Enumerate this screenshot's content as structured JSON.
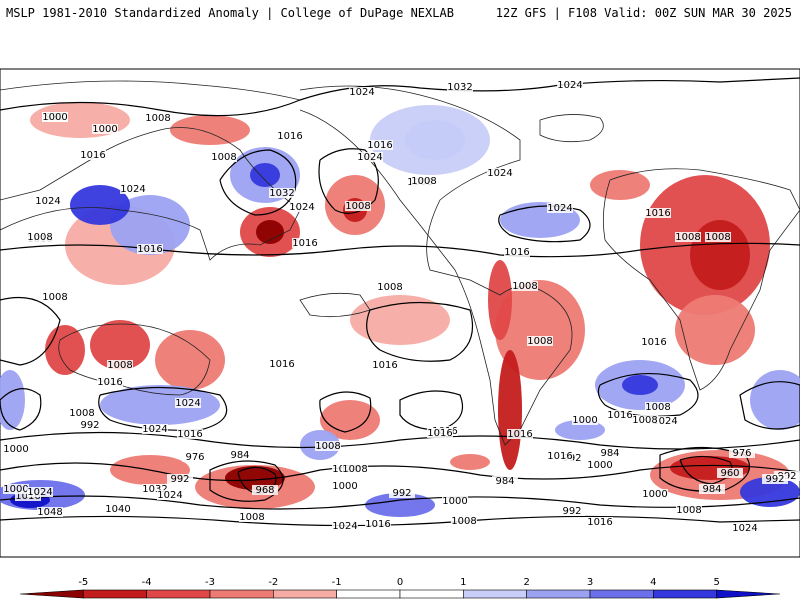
{
  "header": {
    "left": "MSLP 1981-2010 Standardized Anomaly | College of DuPage NEXLAB",
    "right": "12Z GFS | F108 Valid: 00Z SUN MAR 30 2025"
  },
  "colorbar": {
    "ticks": [
      "-5",
      "-4",
      "-3",
      "-2",
      "-1",
      "0",
      "1",
      "2",
      "3",
      "4",
      "5"
    ],
    "colors": [
      "#8b0000",
      "#c41c1c",
      "#e04848",
      "#ee7a74",
      "#f6aca4",
      "#ffffff",
      "#ffffff",
      "#c8cef8",
      "#9ca2f2",
      "#6c70ea",
      "#3538dc",
      "#1010c8"
    ]
  },
  "isobar_labels": [
    "992",
    "1000",
    "1008",
    "1016",
    "1024",
    "1032",
    "1024",
    "1024",
    "1008",
    "1016",
    "1024",
    "1032",
    "1016",
    "1024",
    "1008",
    "1008",
    "1016",
    "1024",
    "1016",
    "1008",
    "1008",
    "1016",
    "1024",
    "1024",
    "1016",
    "1016",
    "1008",
    "1008",
    "1016",
    "1008",
    "1008",
    "1008",
    "1016",
    "1008",
    "1016",
    "1008",
    "1016",
    "1024",
    "1024",
    "1016",
    "1024",
    "1008",
    "1016",
    "1000",
    "1008",
    "1016",
    "1016",
    "1024",
    "1008",
    "992",
    "1008",
    "1000",
    "1016",
    "992",
    "984",
    "976",
    "984",
    "992",
    "1032",
    "1024",
    "968",
    "1000",
    "1040",
    "1048",
    "1008",
    "992",
    "1016",
    "1024",
    "1000",
    "1008",
    "1016",
    "992",
    "1000",
    "984",
    "992",
    "984",
    "976",
    "960",
    "1008",
    "992",
    "1000",
    "1024",
    "1016",
    "1000",
    "1008",
    "1016",
    "1024",
    "1000"
  ]
}
